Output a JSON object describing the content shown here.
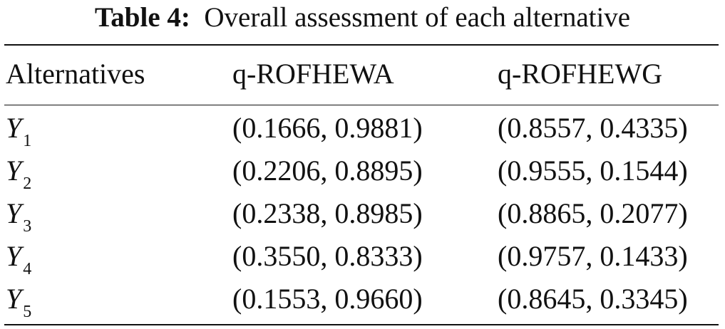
{
  "table": {
    "label": "Table 4:",
    "caption": "Overall assessment of each alternative",
    "headers": [
      "Alternatives",
      "q-ROFHEWA",
      "q-ROFHEWG"
    ],
    "rows": [
      {
        "name": "Y",
        "sub": "1",
        "values": [
          "(0.1666, 0.9881)",
          "(0.8557, 0.4335)"
        ]
      },
      {
        "name": "Y",
        "sub": "2",
        "values": [
          "(0.2206, 0.8895)",
          "(0.9555, 0.1544)"
        ]
      },
      {
        "name": "Y",
        "sub": "3",
        "values": [
          "(0.2338, 0.8985)",
          "(0.8865, 0.2077)"
        ]
      },
      {
        "name": "Y",
        "sub": "4",
        "values": [
          "(0.3550, 0.8333)",
          "(0.9757, 0.1433)"
        ]
      },
      {
        "name": "Y",
        "sub": "5",
        "values": [
          "(0.1553, 0.9660)",
          "(0.8645, 0.3345)"
        ]
      }
    ]
  }
}
